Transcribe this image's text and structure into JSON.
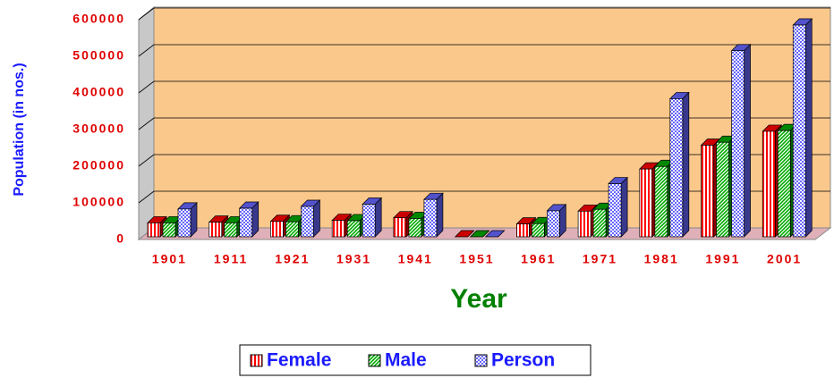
{
  "chart_data": {
    "type": "bar",
    "x_label": "Year",
    "y_label": "Population (in nos.)",
    "categories": [
      "1901",
      "1911",
      "1921",
      "1931",
      "1941",
      "1951",
      "1961",
      "1971",
      "1981",
      "1991",
      "2001"
    ],
    "series": [
      {
        "name": "Female",
        "color": "#ff0000",
        "values": [
          38000,
          40000,
          42000,
          45000,
          52000,
          0,
          35000,
          70000,
          185000,
          250000,
          288000
        ]
      },
      {
        "name": "Male",
        "color": "#00aa00",
        "values": [
          38000,
          38000,
          41000,
          44000,
          50000,
          0,
          36000,
          75000,
          192000,
          258000,
          290000
        ]
      },
      {
        "name": "Person",
        "color": "#6666ff",
        "values": [
          76000,
          78000,
          83000,
          89000,
          102000,
          0,
          71000,
          145000,
          377000,
          508000,
          578000
        ]
      }
    ],
    "ylim": [
      0,
      600000
    ],
    "yticks": [
      0,
      100000,
      200000,
      300000,
      400000,
      500000,
      600000
    ],
    "grid": true
  }
}
